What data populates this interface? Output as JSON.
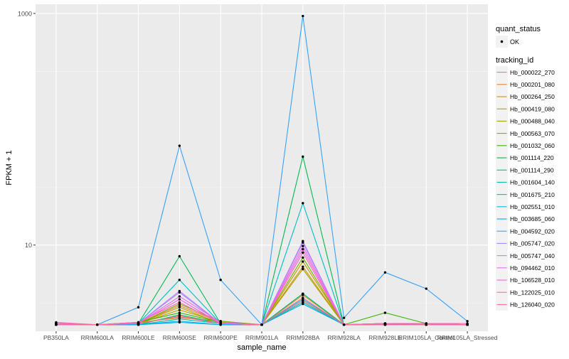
{
  "chart_data": {
    "type": "line",
    "xlabel": "sample_name",
    "ylabel": "FPKM + 1",
    "y_scale": "log10",
    "ylim": [
      1.8,
      1200
    ],
    "y_ticks": [
      {
        "value": 10,
        "label": "10"
      },
      {
        "value": 1000,
        "label": "1000"
      }
    ],
    "categories": [
      "PB350LA",
      "RRIM600LA",
      "RRIM600LE",
      "RRIM600SE",
      "RRIM600PE",
      "RRIM901LA",
      "RRIM928BA",
      "RRIM928LA",
      "RRIM928LE",
      "RRIM105LA_Control",
      "RRIM105LA_Stressed"
    ],
    "legend_points": {
      "title": "quant_status",
      "items": [
        "OK"
      ]
    },
    "legend_lines_title": "tracking_id",
    "series": [
      {
        "name": "Hb_000022_270",
        "color": "#F8766D",
        "values": [
          2.1,
          2.05,
          2.1,
          2.45,
          2.1,
          2.05,
          3.3,
          2.05,
          2.1,
          2.1,
          2.05
        ]
      },
      {
        "name": "Hb_000201_080",
        "color": "#EA8331",
        "values": [
          2.05,
          2.05,
          2.1,
          3.0,
          2.15,
          2.05,
          3.7,
          2.05,
          2.05,
          2.05,
          2.05
        ]
      },
      {
        "name": "Hb_000264_250",
        "color": "#D89000",
        "values": [
          2.1,
          2.05,
          2.15,
          2.35,
          2.2,
          2.05,
          6.5,
          2.05,
          2.1,
          2.1,
          2.05
        ]
      },
      {
        "name": "Hb_000419_080",
        "color": "#C09B00",
        "values": [
          2.05,
          2.05,
          2.1,
          2.75,
          2.15,
          2.05,
          7.2,
          2.05,
          2.05,
          2.05,
          2.05
        ]
      },
      {
        "name": "Hb_000488_040",
        "color": "#A3A500",
        "values": [
          2.1,
          2.05,
          2.1,
          2.9,
          2.1,
          2.05,
          6.2,
          2.05,
          2.1,
          2.05,
          2.05
        ]
      },
      {
        "name": "Hb_000563_070",
        "color": "#7CAE00",
        "values": [
          2.1,
          2.05,
          2.1,
          3.1,
          2.2,
          2.05,
          7.8,
          2.05,
          2.1,
          2.1,
          2.05
        ]
      },
      {
        "name": "Hb_001032_060",
        "color": "#39B600",
        "values": [
          2.05,
          2.05,
          2.15,
          2.6,
          2.15,
          2.05,
          3.8,
          2.05,
          2.6,
          2.1,
          2.05
        ]
      },
      {
        "name": "Hb_001114_220",
        "color": "#00BB4E",
        "values": [
          2.05,
          2.05,
          2.1,
          8.0,
          2.1,
          2.05,
          58.0,
          2.05,
          2.1,
          2.05,
          2.05
        ]
      },
      {
        "name": "Hb_001114_290",
        "color": "#00BF7D",
        "values": [
          2.05,
          2.05,
          2.05,
          2.5,
          2.1,
          2.05,
          3.8,
          2.05,
          2.05,
          2.05,
          2.05
        ]
      },
      {
        "name": "Hb_001604_140",
        "color": "#00C1A3",
        "values": [
          2.05,
          2.05,
          2.05,
          2.3,
          2.1,
          2.05,
          3.2,
          2.05,
          2.05,
          2.05,
          2.05
        ]
      },
      {
        "name": "Hb_001675_210",
        "color": "#00BFC4",
        "values": [
          2.05,
          2.05,
          2.1,
          5.0,
          2.1,
          2.05,
          23.0,
          2.05,
          2.05,
          2.05,
          2.05
        ]
      },
      {
        "name": "Hb_002551_010",
        "color": "#00B8E5",
        "values": [
          2.05,
          2.05,
          2.05,
          2.2,
          2.05,
          2.05,
          3.4,
          2.05,
          2.05,
          2.05,
          2.05
        ]
      },
      {
        "name": "Hb_003685_060",
        "color": "#00ABFD",
        "values": [
          2.05,
          2.05,
          2.05,
          2.15,
          2.05,
          2.05,
          3.1,
          2.05,
          2.05,
          2.05,
          2.05
        ]
      },
      {
        "name": "Hb_004592_020",
        "color": "#35A2FF",
        "values": [
          2.05,
          2.05,
          2.9,
          72.0,
          5.0,
          2.05,
          950.0,
          2.35,
          5.8,
          4.2,
          2.2
        ]
      },
      {
        "name": "Hb_005747_020",
        "color": "#9590FF",
        "values": [
          2.1,
          2.05,
          2.1,
          3.9,
          2.1,
          2.05,
          10.5,
          2.05,
          2.1,
          2.1,
          2.05
        ]
      },
      {
        "name": "Hb_005747_040",
        "color": "#C77CFF",
        "values": [
          2.05,
          2.05,
          2.1,
          4.0,
          2.1,
          2.05,
          10.8,
          2.05,
          2.05,
          2.05,
          2.05
        ]
      },
      {
        "name": "Hb_094462_010",
        "color": "#E76BF3",
        "values": [
          2.1,
          2.05,
          2.1,
          3.6,
          2.15,
          2.05,
          9.8,
          2.05,
          2.1,
          2.1,
          2.05
        ]
      },
      {
        "name": "Hb_106528_010",
        "color": "#FA62DB",
        "values": [
          2.05,
          2.05,
          2.1,
          3.4,
          2.1,
          2.05,
          9.2,
          2.05,
          2.05,
          2.05,
          2.05
        ]
      },
      {
        "name": "Hb_122025_010",
        "color": "#FF62BC",
        "values": [
          2.15,
          2.05,
          2.15,
          3.2,
          2.1,
          2.05,
          8.6,
          2.05,
          2.1,
          2.1,
          2.1
        ]
      },
      {
        "name": "Hb_126040_020",
        "color": "#FF6C91",
        "values": [
          2.05,
          2.05,
          2.1,
          2.4,
          2.1,
          2.05,
          3.5,
          2.05,
          2.05,
          2.05,
          2.05
        ]
      }
    ]
  }
}
